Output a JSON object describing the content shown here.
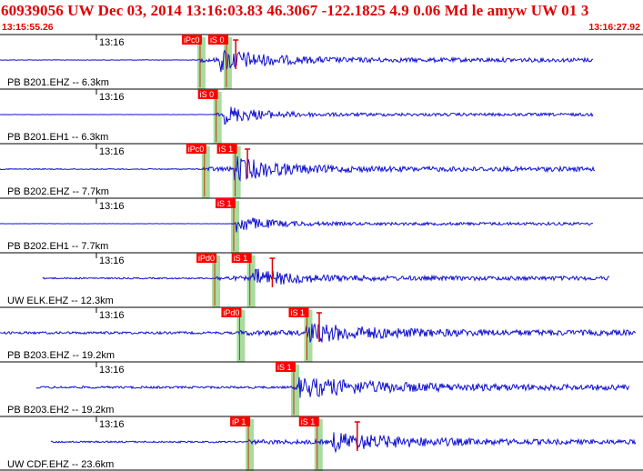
{
  "header": {
    "title": "60939056 UW Dec 03, 2014 13:16:03.83    46.3067 -122.1825  4.9 0.06 Md le amyw UW 01    3",
    "start_time": "13:15:55.26",
    "end_time": "13:16:27.92"
  },
  "colors": {
    "header_text": "#e00000",
    "trace": "#1010d0",
    "pick_box": "#ff0000",
    "pick_text": "#ffffff",
    "pick_band": "#a8dca0",
    "label_text": "#000000"
  },
  "traces": [
    {
      "label": "PB B201.EHZ -- 6.3km",
      "tick": "13:16",
      "picks": [
        {
          "label": "iPc0",
          "t": 13.6
        },
        {
          "label": "iS 0",
          "t": 15.4
        }
      ],
      "amp": 4,
      "noise": 0.12,
      "onset_t": 13.6,
      "big_t": 15.0,
      "decay": 3,
      "mark_t": 16.1,
      "end_t": 40.5,
      "start_t": 0
    },
    {
      "label": "PB B201.EH1 -- 6.3km",
      "tick": "13:16",
      "picks": [
        {
          "label": "iS 0",
          "t": 14.7
        }
      ],
      "amp": 3,
      "noise": 0.05,
      "onset_t": 14.7,
      "big_t": 15.3,
      "decay": 2.5,
      "end_t": 40.5,
      "start_t": 0
    },
    {
      "label": "PB B202.EHZ -- 7.7km",
      "tick": "13:16",
      "picks": [
        {
          "label": "iPc0",
          "t": 13.9
        },
        {
          "label": "iS 1",
          "t": 16.0
        }
      ],
      "amp": 4,
      "noise": 0.25,
      "onset_t": 13.9,
      "big_t": 16.0,
      "decay": 3,
      "mark_t": 16.9,
      "end_t": 40.6,
      "start_t": 0
    },
    {
      "label": "PB B202.EH1 -- 7.7km",
      "tick": "13:16",
      "picks": [
        {
          "label": "iS 1",
          "t": 15.9
        }
      ],
      "amp": 3,
      "noise": 0.05,
      "onset_t": 15.9,
      "big_t": 16.1,
      "decay": 2,
      "end_t": 40.5,
      "start_t": 0
    },
    {
      "label": "UW ELK.EHZ -- 12.3km",
      "tick": "13:16",
      "picks": [
        {
          "label": "iPd0",
          "t": 14.6
        },
        {
          "label": "iS 1",
          "t": 17.0
        }
      ],
      "amp": 3,
      "noise": 0.35,
      "onset_t": 14.6,
      "big_t": 17.2,
      "decay": 3,
      "mark_t": 18.6,
      "end_t": 41.6,
      "start_t": 2.9
    },
    {
      "label": "PB B203.EHZ -- 19.2km",
      "tick": "13:16",
      "picks": [
        {
          "label": "iPd0",
          "t": 16.3
        },
        {
          "label": "iS 1",
          "t": 20.9
        }
      ],
      "amp": 3,
      "noise": 0.6,
      "onset_t": 16.3,
      "big_t": 20.9,
      "decay": 5,
      "mark_t": 21.8,
      "end_t": 43.4,
      "start_t": 0
    },
    {
      "label": "PB B203.EH2 -- 19.2km",
      "tick": "13:16",
      "picks": [
        {
          "label": "iS 1",
          "t": 20.0
        }
      ],
      "amp": 3,
      "noise": 0.55,
      "onset_t": 20.0,
      "big_t": 20.4,
      "decay": 6,
      "end_t": 43.0,
      "start_t": 2.5
    },
    {
      "label": "UW CDF.EHZ -- 23.6km",
      "tick": "13:16",
      "picks": [
        {
          "label": "iP 1",
          "t": 16.9
        },
        {
          "label": "iS 1",
          "t": 21.6
        }
      ],
      "amp": 3,
      "noise": 0.4,
      "onset_t": 16.9,
      "big_t": 22.7,
      "decay": 5,
      "mark_t": 24.4,
      "end_t": 43.4,
      "start_t": 3.5
    }
  ]
}
